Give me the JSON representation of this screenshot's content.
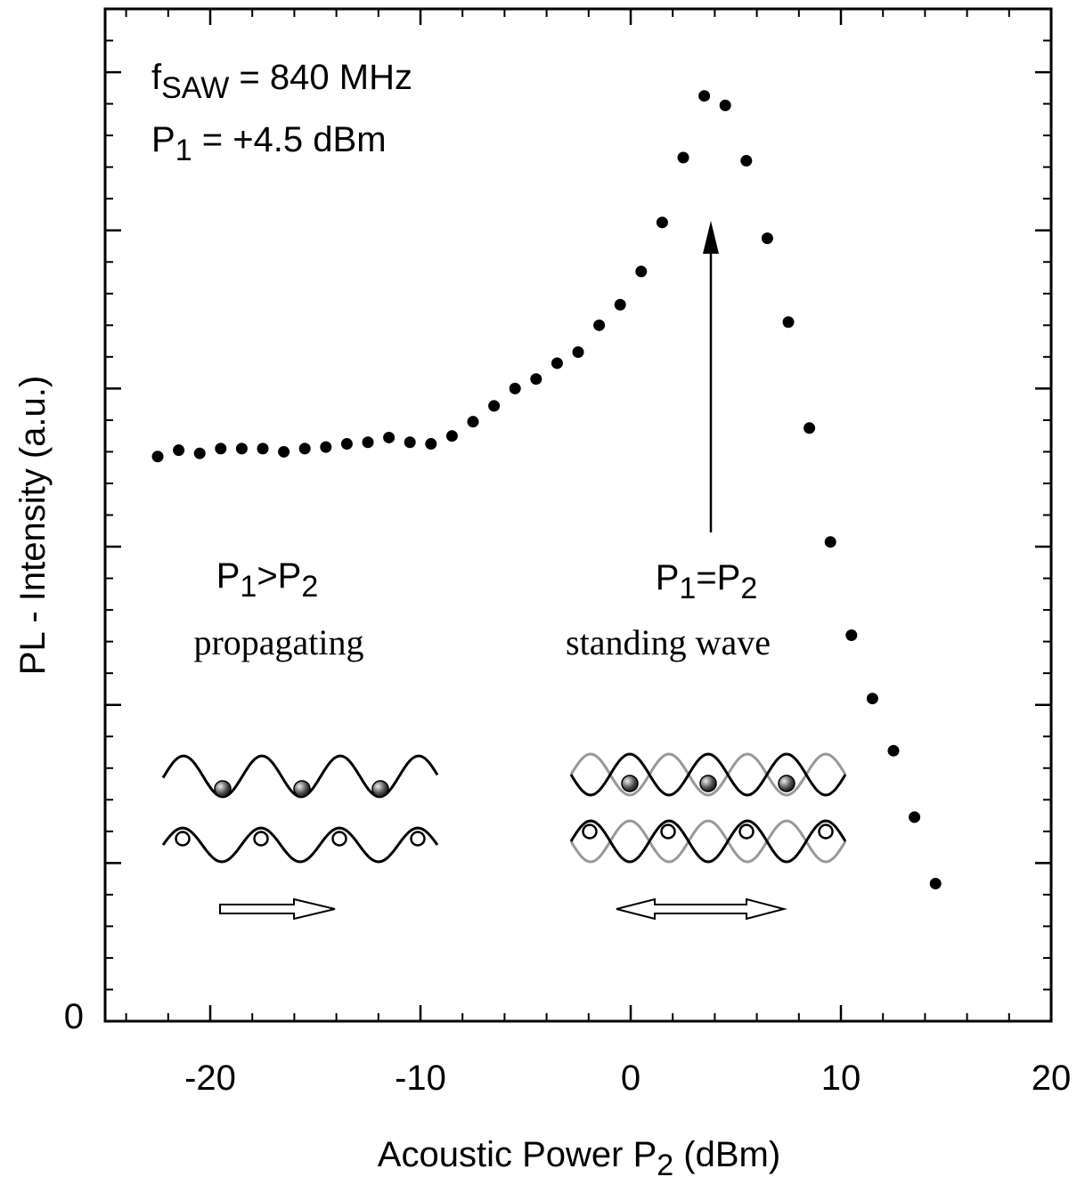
{
  "chart_data": {
    "type": "scatter",
    "x_label": [
      {
        "text": "Acoustic Power P"
      },
      {
        "text": "2",
        "sub": true
      },
      {
        "text": " (dBm)"
      }
    ],
    "y_label": "PL - Intensity (a.u.)",
    "xlim": [
      -25,
      20
    ],
    "ylim": [
      0,
      6.4
    ],
    "xticks": [
      -20,
      -10,
      0,
      10,
      20
    ],
    "x_minor_ticks": [
      -24,
      -22,
      -18,
      -16,
      -14,
      -12,
      -8,
      -6,
      -4,
      -2,
      2,
      4,
      6,
      8,
      12,
      14,
      16,
      18
    ],
    "yticks": [
      0,
      {
        "value": 1,
        "label": null
      },
      {
        "value": 2,
        "label": null
      },
      {
        "value": 3,
        "label": null
      },
      {
        "value": 4,
        "label": null
      },
      {
        "value": 5,
        "label": null
      },
      {
        "value": 6,
        "label": null
      }
    ],
    "y_minor_ticks": [
      0.2,
      0.4,
      0.6,
      0.8,
      1.2,
      1.4,
      1.6,
      1.8,
      2.2,
      2.4,
      2.6,
      2.8,
      3.2,
      3.4,
      3.6,
      3.8,
      4.2,
      4.4,
      4.6,
      4.8,
      5.2,
      5.4,
      5.6,
      5.8,
      6.2,
      6.4
    ],
    "color": "#000000",
    "x": [
      -22.5,
      -21.5,
      -20.5,
      -19.5,
      -18.5,
      -17.5,
      -16.5,
      -15.5,
      -14.5,
      -13.5,
      -12.5,
      -11.5,
      -10.5,
      -9.5,
      -8.5,
      -7.5,
      -6.5,
      -5.5,
      -4.5,
      -3.5,
      -2.5,
      -1.5,
      -0.5,
      0.5,
      1.5,
      2.5,
      3.5,
      4.5,
      5.5,
      6.5,
      7.5,
      8.5,
      9.5,
      10.5,
      11.5,
      12.5,
      13.5,
      14.5
    ],
    "values": [
      3.57,
      3.61,
      3.59,
      3.62,
      3.62,
      3.62,
      3.6,
      3.62,
      3.63,
      3.65,
      3.66,
      3.69,
      3.66,
      3.65,
      3.7,
      3.79,
      3.89,
      4.0,
      4.06,
      4.16,
      4.23,
      4.4,
      4.53,
      4.74,
      5.05,
      5.46,
      5.85,
      5.79,
      5.44,
      4.95,
      4.42,
      3.75,
      3.03,
      2.44,
      2.04,
      1.71,
      1.29,
      0.87
    ],
    "annotations": [
      {
        "parts": [
          {
            "text": "f"
          },
          {
            "text": "SAW",
            "sub": true
          },
          {
            "text": " = 840 MHz"
          }
        ]
      },
      {
        "parts": [
          {
            "text": "P"
          },
          {
            "text": "1",
            "sub": true
          },
          {
            "text": " = +4.5 dBm"
          }
        ]
      },
      {
        "parts": [
          {
            "text": "P"
          },
          {
            "text": "1",
            "sub": true
          },
          {
            "text": ">P"
          },
          {
            "text": "2",
            "sub": true
          }
        ]
      },
      {
        "parts": [
          {
            "text": "propagating"
          }
        ]
      },
      {
        "parts": [
          {
            "text": "P"
          },
          {
            "text": "1",
            "sub": true
          },
          {
            "text": "=P"
          },
          {
            "text": "2",
            "sub": true
          }
        ]
      },
      {
        "parts": [
          {
            "text": "standing wave"
          }
        ]
      }
    ]
  }
}
